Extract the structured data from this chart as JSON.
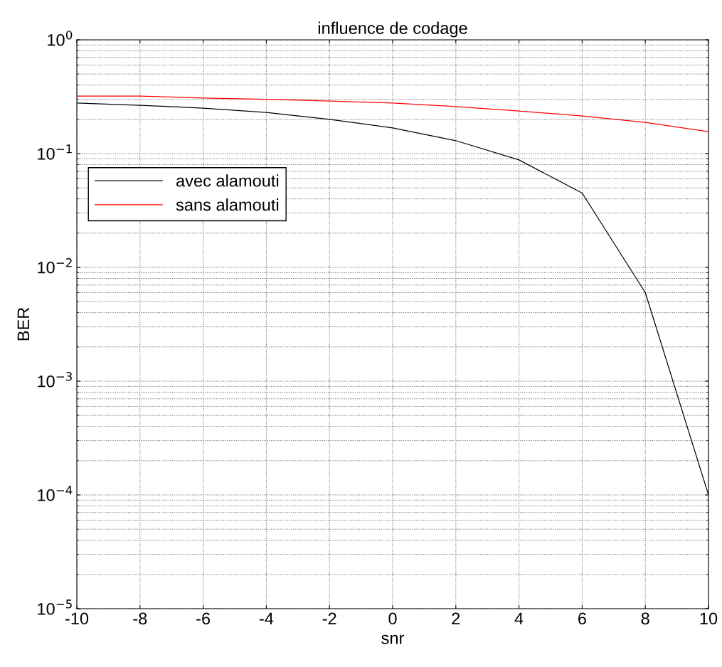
{
  "chart_data": {
    "type": "line",
    "title": "influence de codage",
    "xlabel": "snr",
    "ylabel": "BER",
    "x": [
      -10,
      -8,
      -6,
      -4,
      -2,
      0,
      2,
      4,
      6,
      8,
      10
    ],
    "series": [
      {
        "name": "avec alamouti",
        "color": "#000000",
        "values": [
          0.278,
          0.266,
          0.251,
          0.23,
          0.2,
          0.168,
          0.13,
          0.088,
          0.045,
          0.006,
          0.0001
        ]
      },
      {
        "name": "sans alamouti",
        "color": "#ff0000",
        "values": [
          0.32,
          0.32,
          0.308,
          0.3,
          0.29,
          0.278,
          0.259,
          0.237,
          0.214,
          0.188,
          0.156
        ]
      }
    ],
    "log": "y",
    "xlim": [
      -10,
      10
    ],
    "ylim": [
      1e-05,
      1
    ],
    "xticks": [
      -10,
      -8,
      -6,
      -4,
      -2,
      0,
      2,
      4,
      6,
      8,
      10
    ],
    "yticks": [
      {
        "value": 1e-05,
        "label": "10$^{−5}$"
      },
      {
        "value": 0.0001,
        "label": "10$^{−4}$"
      },
      {
        "value": 0.001,
        "label": "10$^{−3}$"
      },
      {
        "value": 0.01,
        "label": "10$^{−2}$"
      },
      {
        "value": 0.1,
        "label": "10$^{−1}$"
      },
      {
        "value": 1,
        "label": "10$^{0}$"
      }
    ],
    "grid": true,
    "legend": "upper left",
    "marker": "none",
    "line_style": "solid"
  }
}
